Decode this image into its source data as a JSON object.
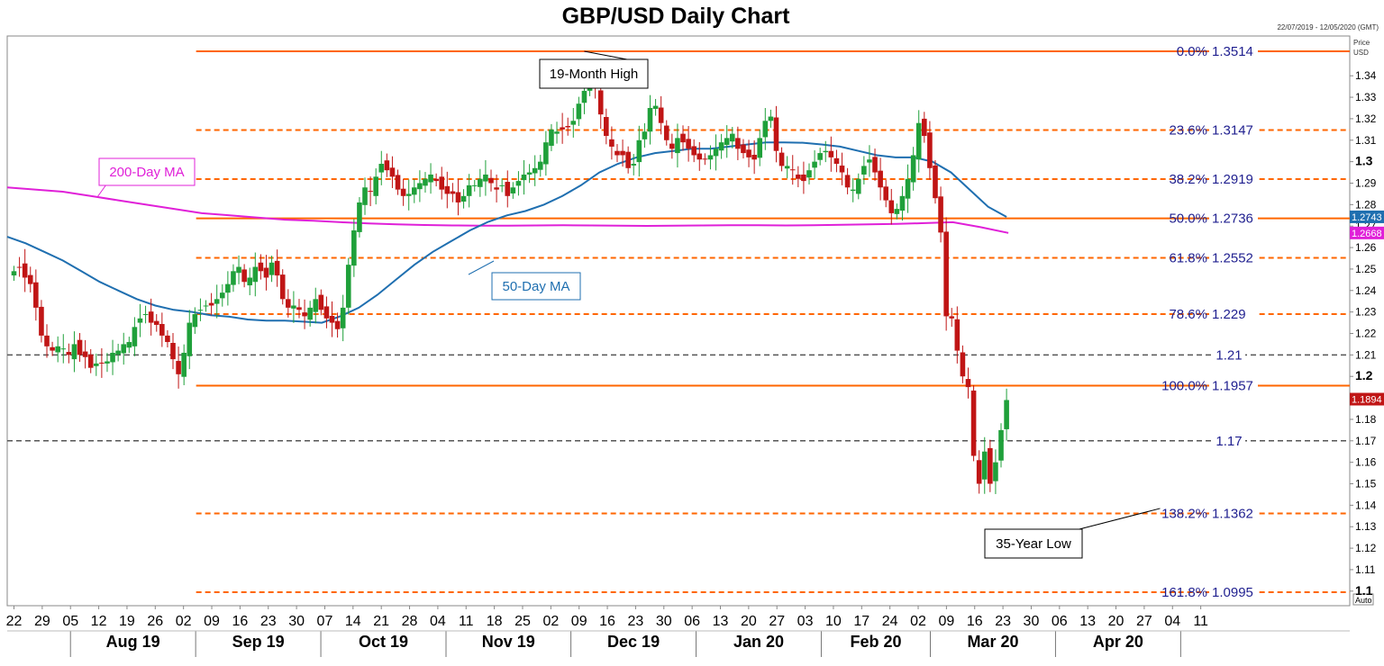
{
  "header": {
    "title": "GBP/USD Daily Chart",
    "date_range": "22/07/2019 - 12/05/2020 (GMT)"
  },
  "axis": {
    "price_label": "Price",
    "currency_label": "USD",
    "auto_label": "Auto",
    "months": [
      "Aug 19",
      "Sep 19",
      "Oct 19",
      "Nov 19",
      "Dec 19",
      "Jan 20",
      "Feb 20",
      "Mar 20",
      "Apr 20"
    ]
  },
  "chart_data": {
    "type": "candlestick",
    "title": "GBP/USD Daily Chart",
    "ylim": [
      1.095,
      1.355
    ],
    "y_ticks": [
      1.1,
      1.11,
      1.12,
      1.13,
      1.14,
      1.15,
      1.16,
      1.17,
      1.18,
      1.19,
      1.2,
      1.21,
      1.22,
      1.23,
      1.24,
      1.25,
      1.26,
      1.27,
      1.28,
      1.29,
      1.3,
      1.31,
      1.32,
      1.33,
      1.34
    ],
    "y_major": [
      1.1,
      1.2,
      1.3
    ],
    "x_tick_labels": [
      "22",
      "29",
      "05",
      "12",
      "19",
      "26",
      "02",
      "09",
      "16",
      "23",
      "30",
      "07",
      "14",
      "21",
      "28",
      "04",
      "11",
      "18",
      "25",
      "02",
      "09",
      "16",
      "23",
      "30",
      "06",
      "13",
      "20",
      "27",
      "03",
      "10",
      "17",
      "24",
      "02",
      "09",
      "16",
      "23",
      "30",
      "06",
      "13",
      "20",
      "27",
      "04",
      "11"
    ],
    "candle_colors": {
      "up": "#1fa03a",
      "down": "#c01515"
    },
    "closes": [
      1.249,
      1.251,
      1.246,
      1.243,
      1.232,
      1.219,
      1.214,
      1.212,
      1.214,
      1.213,
      1.21,
      1.215,
      1.21,
      1.209,
      1.204,
      1.206,
      1.206,
      1.207,
      1.211,
      1.212,
      1.215,
      1.216,
      1.223,
      1.227,
      1.229,
      1.225,
      1.224,
      1.219,
      1.216,
      1.208,
      1.201,
      1.211,
      1.225,
      1.229,
      1.231,
      1.233,
      1.233,
      1.236,
      1.239,
      1.243,
      1.249,
      1.251,
      1.244,
      1.246,
      1.251,
      1.249,
      1.246,
      1.253,
      1.247,
      1.236,
      1.232,
      1.233,
      1.231,
      1.228,
      1.232,
      1.236,
      1.231,
      1.227,
      1.225,
      1.222,
      1.232,
      1.252,
      1.268,
      1.281,
      1.288,
      1.286,
      1.293,
      1.299,
      1.296,
      1.293,
      1.287,
      1.284,
      1.285,
      1.288,
      1.29,
      1.292,
      1.294,
      1.291,
      1.287,
      1.285,
      1.285,
      1.281,
      1.284,
      1.289,
      1.289,
      1.292,
      1.294,
      1.29,
      1.287,
      1.289,
      1.284,
      1.288,
      1.291,
      1.294,
      1.295,
      1.297,
      1.3,
      1.309,
      1.315,
      1.314,
      1.315,
      1.316,
      1.319,
      1.327,
      1.333,
      1.341,
      1.334,
      1.322,
      1.312,
      1.307,
      1.303,
      1.303,
      1.297,
      1.299,
      1.31,
      1.314,
      1.325,
      1.326,
      1.318,
      1.31,
      1.306,
      1.311,
      1.309,
      1.306,
      1.303,
      1.301,
      1.301,
      1.303,
      1.306,
      1.309,
      1.311,
      1.313,
      1.306,
      1.304,
      1.302,
      1.301,
      1.311,
      1.319,
      1.321,
      1.305,
      1.298,
      1.298,
      1.296,
      1.292,
      1.291,
      1.296,
      1.3,
      1.304,
      1.305,
      1.302,
      1.299,
      1.295,
      1.288,
      1.287,
      1.292,
      1.298,
      1.301,
      1.295,
      1.288,
      1.282,
      1.276,
      1.278,
      1.284,
      1.292,
      1.303,
      1.318,
      1.312,
      1.297,
      1.283,
      1.267,
      1.228,
      1.227,
      1.212,
      1.2,
      1.195,
      1.163,
      1.15,
      1.165,
      1.15,
      1.16,
      1.175,
      1.189
    ],
    "levels": [
      {
        "label": "0.0%",
        "value": 1.3514,
        "text": "1.3514",
        "style": "solid"
      },
      {
        "label": "23.6%",
        "value": 1.3147,
        "text": "1.3147",
        "style": "dashed"
      },
      {
        "label": "38.2%",
        "value": 1.2919,
        "text": "1.2919",
        "style": "dashed"
      },
      {
        "label": "50.0%",
        "value": 1.2736,
        "text": "1.2736",
        "style": "solid"
      },
      {
        "label": "61.8%",
        "value": 1.2552,
        "text": "1.2552",
        "style": "dashed"
      },
      {
        "label": "78.6%",
        "value": 1.229,
        "text": "1.229",
        "style": "dashed"
      },
      {
        "label": "100.0%",
        "value": 1.1957,
        "text": "1.1957",
        "style": "solid"
      },
      {
        "label": "138.2%",
        "value": 1.1362,
        "text": "1.1362",
        "style": "dashed"
      },
      {
        "label": "161.8%",
        "value": 1.0995,
        "text": "1.0995",
        "style": "dashed"
      }
    ],
    "horizontal_lines": [
      {
        "value": 1.21,
        "text": "1.21"
      },
      {
        "value": 1.17,
        "text": "1.17"
      }
    ],
    "ma200": {
      "name": "200-Day MA",
      "color": "#e020d8",
      "current": "1.2668",
      "points": [
        1.288,
        1.287,
        1.286,
        1.284,
        1.282,
        1.28,
        1.278,
        1.276,
        1.275,
        1.274,
        1.273,
        1.2725,
        1.2718,
        1.2712,
        1.2708,
        1.2705,
        1.2703,
        1.2702,
        1.2702,
        1.2703,
        1.2704,
        1.2703,
        1.2702,
        1.2701,
        1.2702,
        1.2703,
        1.2704,
        1.2704,
        1.2703,
        1.2704,
        1.2706,
        1.2708,
        1.271,
        1.2714,
        1.2718,
        1.2695,
        1.2668
      ]
    },
    "ma50": {
      "name": "50-Day MA",
      "color": "#1f6fb0",
      "current": "1.2743",
      "points": [
        1.265,
        1.262,
        1.258,
        1.254,
        1.249,
        1.244,
        1.24,
        1.236,
        1.233,
        1.231,
        1.23,
        1.2285,
        1.2278,
        1.2265,
        1.226,
        1.226,
        1.2255,
        1.225,
        1.228,
        1.232,
        1.238,
        1.245,
        1.252,
        1.258,
        1.263,
        1.268,
        1.272,
        1.275,
        1.277,
        1.28,
        1.284,
        1.289,
        1.295,
        1.299,
        1.302,
        1.304,
        1.305,
        1.306,
        1.306,
        1.307,
        1.308,
        1.309,
        1.309,
        1.3088,
        1.308,
        1.307,
        1.305,
        1.303,
        1.302,
        1.302,
        1.3,
        1.295,
        1.287,
        1.279,
        1.2743
      ]
    },
    "callouts": [
      {
        "text": "19-Month High",
        "value": 1.3514
      },
      {
        "text": "35-Year Low",
        "value": 1.1385
      }
    ],
    "price_tags": [
      {
        "text": "1.2743",
        "value": 1.2743,
        "color": "#1f6fb0"
      },
      {
        "text": "1.2668",
        "value": 1.2668,
        "color": "#e020d8"
      },
      {
        "text": "1.1894",
        "value": 1.1894,
        "color": "#c01515"
      }
    ]
  }
}
